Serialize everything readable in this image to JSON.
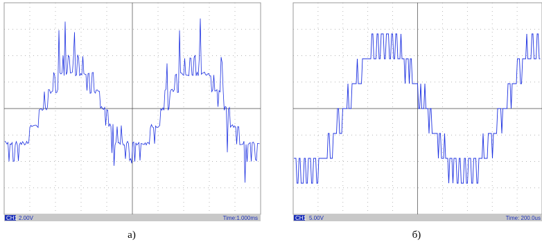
{
  "panels": [
    {
      "channel": "CH1",
      "scale": "2.00V",
      "time": "Time:1.000ms",
      "caption": "а)"
    },
    {
      "channel": "CH1",
      "scale": "5.00V",
      "time": "Time: 200.0us",
      "caption": "б)"
    }
  ]
}
